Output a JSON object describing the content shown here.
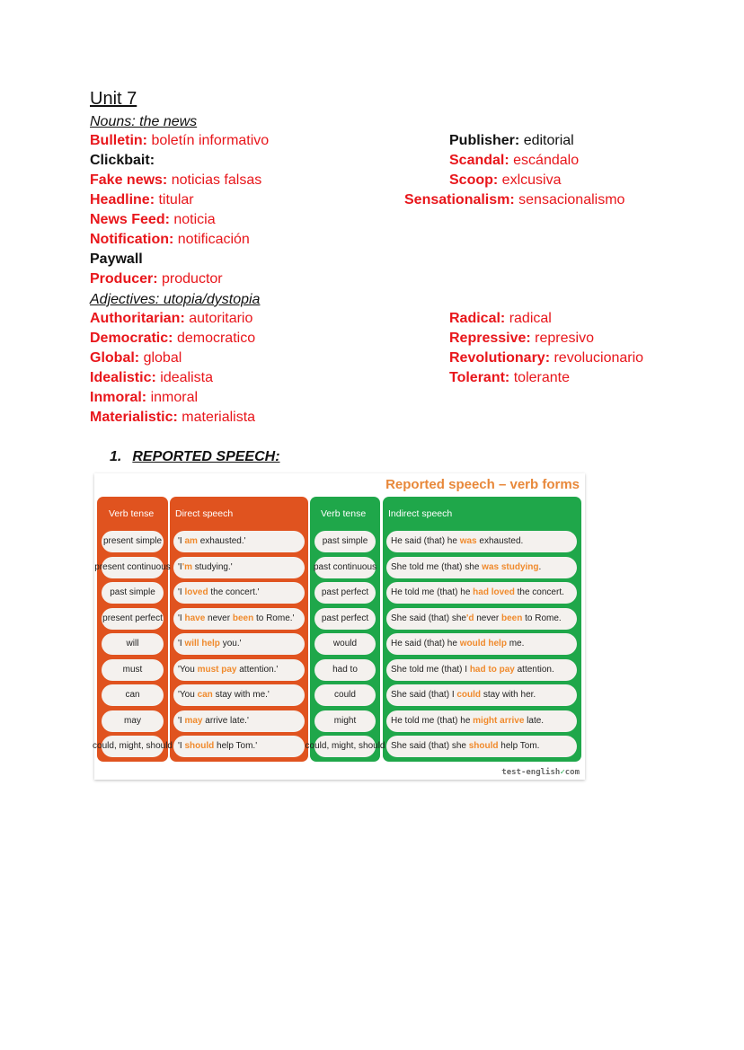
{
  "unit_title": "Unit 7",
  "nouns": {
    "heading": "Nouns: the news",
    "left": [
      {
        "term": "Bulletin:",
        "def": "boletín informativo",
        "color": "red"
      },
      {
        "term": "Clickbait:",
        "def": "",
        "color": "black"
      },
      {
        "term": "Fake news:",
        "def": "noticias falsas",
        "color": "red"
      },
      {
        "term": "Headline:",
        "def": "titular",
        "color": "red"
      },
      {
        "term": "News Feed:",
        "def": "noticia",
        "color": "red"
      },
      {
        "term": "Notification:",
        "def": "notificación",
        "color": "red"
      },
      {
        "term": "Paywall",
        "def": "",
        "color": "black"
      },
      {
        "term": "Producer:",
        "def": "productor",
        "color": "red"
      }
    ],
    "right": [
      {
        "term": "Publisher:",
        "def": "editorial",
        "color": "black"
      },
      {
        "term": "Scandal:",
        "def": "escándalo",
        "color": "red"
      },
      {
        "term": "Scoop:",
        "def": "exlcusiva",
        "color": "red"
      },
      {
        "term": "Sensationalism:",
        "def": "sensacionalismo",
        "color": "red"
      }
    ]
  },
  "adjectives": {
    "heading": "Adjectives: utopia/dystopia",
    "left": [
      {
        "term": "Authoritarian:",
        "def": "autoritario",
        "color": "red"
      },
      {
        "term": "Democratic:",
        "def": "democratico",
        "color": "red"
      },
      {
        "term": "Global:",
        "def": "global",
        "color": "red"
      },
      {
        "term": "Idealistic:",
        "def": "idealista",
        "color": "red"
      },
      {
        "term": "Inmoral:",
        "def": "inmoral",
        "color": "red"
      },
      {
        "term": "Materialistic:",
        "def": "materialista",
        "color": "red"
      }
    ],
    "right": [
      {
        "term": "Radical:",
        "def": "radical",
        "color": "red"
      },
      {
        "term": "Repressive:",
        "def": "represivo",
        "color": "red"
      },
      {
        "term": "Revolutionary:",
        "def": "revolucionario",
        "color": "red"
      },
      {
        "term": "Tolerant:",
        "def": "tolerante",
        "color": "red"
      }
    ]
  },
  "reported_speech": {
    "number": "1.",
    "heading": "REPORTED SPEECH:",
    "table": {
      "title": "Reported speech – verb forms",
      "headers": [
        "Verb tense",
        "Direct speech",
        "Verb tense",
        "Indirect speech"
      ],
      "colors": {
        "direct": "#e0531f",
        "indirect": "#1fa74a",
        "highlight": "#f08a2c",
        "title": "#e8883a"
      },
      "rows": [
        {
          "tense": "present simple",
          "direct": [
            {
              "t": "'I "
            },
            {
              "t": "am",
              "h": true
            },
            {
              "t": " exhausted.'"
            }
          ],
          "new_tense": "past simple",
          "indirect": [
            {
              "t": "He said (that) he "
            },
            {
              "t": "was",
              "h": true
            },
            {
              "t": " exhausted."
            }
          ]
        },
        {
          "tense": "present continuous",
          "direct": [
            {
              "t": "'I"
            },
            {
              "t": "'m",
              "h": true
            },
            {
              "t": " studying.'"
            }
          ],
          "new_tense": "past continuous",
          "indirect": [
            {
              "t": "She told me (that) she "
            },
            {
              "t": "was studying",
              "h": true
            },
            {
              "t": "."
            }
          ]
        },
        {
          "tense": "past simple",
          "direct": [
            {
              "t": "'I "
            },
            {
              "t": "loved",
              "h": true
            },
            {
              "t": " the concert.'"
            }
          ],
          "new_tense": "past perfect",
          "indirect": [
            {
              "t": "He told me (that) he "
            },
            {
              "t": "had loved",
              "h": true
            },
            {
              "t": " the concert."
            }
          ]
        },
        {
          "tense": "present perfect",
          "direct": [
            {
              "t": "'I "
            },
            {
              "t": "have",
              "h": true
            },
            {
              "t": " never "
            },
            {
              "t": "been",
              "h": true
            },
            {
              "t": " to Rome.'"
            }
          ],
          "new_tense": "past perfect",
          "indirect": [
            {
              "t": "She said (that) she"
            },
            {
              "t": "'d",
              "h": true
            },
            {
              "t": " never "
            },
            {
              "t": "been",
              "h": true
            },
            {
              "t": " to Rome."
            }
          ]
        },
        {
          "tense": "will",
          "direct": [
            {
              "t": "'I "
            },
            {
              "t": "will help",
              "h": true
            },
            {
              "t": " you.'"
            }
          ],
          "new_tense": "would",
          "indirect": [
            {
              "t": "He said (that) he "
            },
            {
              "t": "would help",
              "h": true
            },
            {
              "t": " me."
            }
          ]
        },
        {
          "tense": "must",
          "direct": [
            {
              "t": "'You "
            },
            {
              "t": "must pay",
              "h": true
            },
            {
              "t": " attention.'"
            }
          ],
          "new_tense": "had to",
          "indirect": [
            {
              "t": "She told me (that) I "
            },
            {
              "t": "had to pay",
              "h": true
            },
            {
              "t": " attention."
            }
          ]
        },
        {
          "tense": "can",
          "direct": [
            {
              "t": "'You "
            },
            {
              "t": "can",
              "h": true
            },
            {
              "t": " stay with me.'"
            }
          ],
          "new_tense": "could",
          "indirect": [
            {
              "t": "She said (that) I "
            },
            {
              "t": "could",
              "h": true
            },
            {
              "t": " stay with her."
            }
          ]
        },
        {
          "tense": "may",
          "direct": [
            {
              "t": "'I "
            },
            {
              "t": "may",
              "h": true
            },
            {
              "t": " arrive late.'"
            }
          ],
          "new_tense": "might",
          "indirect": [
            {
              "t": "He told me (that) he "
            },
            {
              "t": "might arrive",
              "h": true
            },
            {
              "t": " late."
            }
          ]
        },
        {
          "tense": "could, might, should",
          "direct": [
            {
              "t": "'I "
            },
            {
              "t": "should",
              "h": true
            },
            {
              "t": " help Tom.'"
            }
          ],
          "new_tense": "could, might, should",
          "indirect": [
            {
              "t": "She said (that) she "
            },
            {
              "t": "should",
              "h": true
            },
            {
              "t": " help Tom."
            }
          ]
        }
      ],
      "logo": "test-english",
      "logo_suffix": "com"
    }
  }
}
